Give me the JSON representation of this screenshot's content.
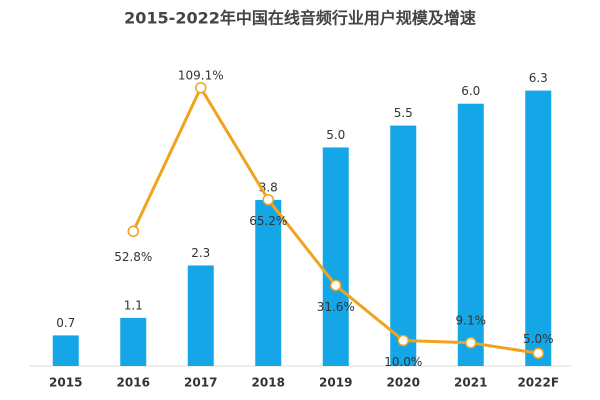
{
  "chart_data": {
    "type": "bar+line",
    "title": "2015-2022年中国在线音频行业用户规模及增速",
    "categories": [
      "2015",
      "2016",
      "2017",
      "2018",
      "2019",
      "2020",
      "2021",
      "2022F"
    ],
    "series": [
      {
        "name": "用户规模",
        "type": "bar",
        "color": "#14a6e6",
        "values": [
          0.7,
          1.1,
          2.3,
          3.8,
          5.0,
          5.5,
          6.0,
          6.3
        ],
        "value_labels": [
          "0.7",
          "1.1",
          "2.3",
          "3.8",
          "5.0",
          "5.5",
          "6.0",
          "6.3"
        ]
      },
      {
        "name": "增速",
        "type": "line",
        "color": "#f0a31e",
        "axis": "y2",
        "values": [
          null,
          52.8,
          109.1,
          65.2,
          31.6,
          10.0,
          9.1,
          5.0
        ],
        "value_labels": [
          null,
          "52.8%",
          "109.1%",
          "65.2%",
          "31.6%",
          "10.0%",
          "9.1%",
          "5.0%"
        ]
      }
    ],
    "ylim": [
      0,
      7
    ],
    "y2lim": [
      0,
      120
    ]
  }
}
